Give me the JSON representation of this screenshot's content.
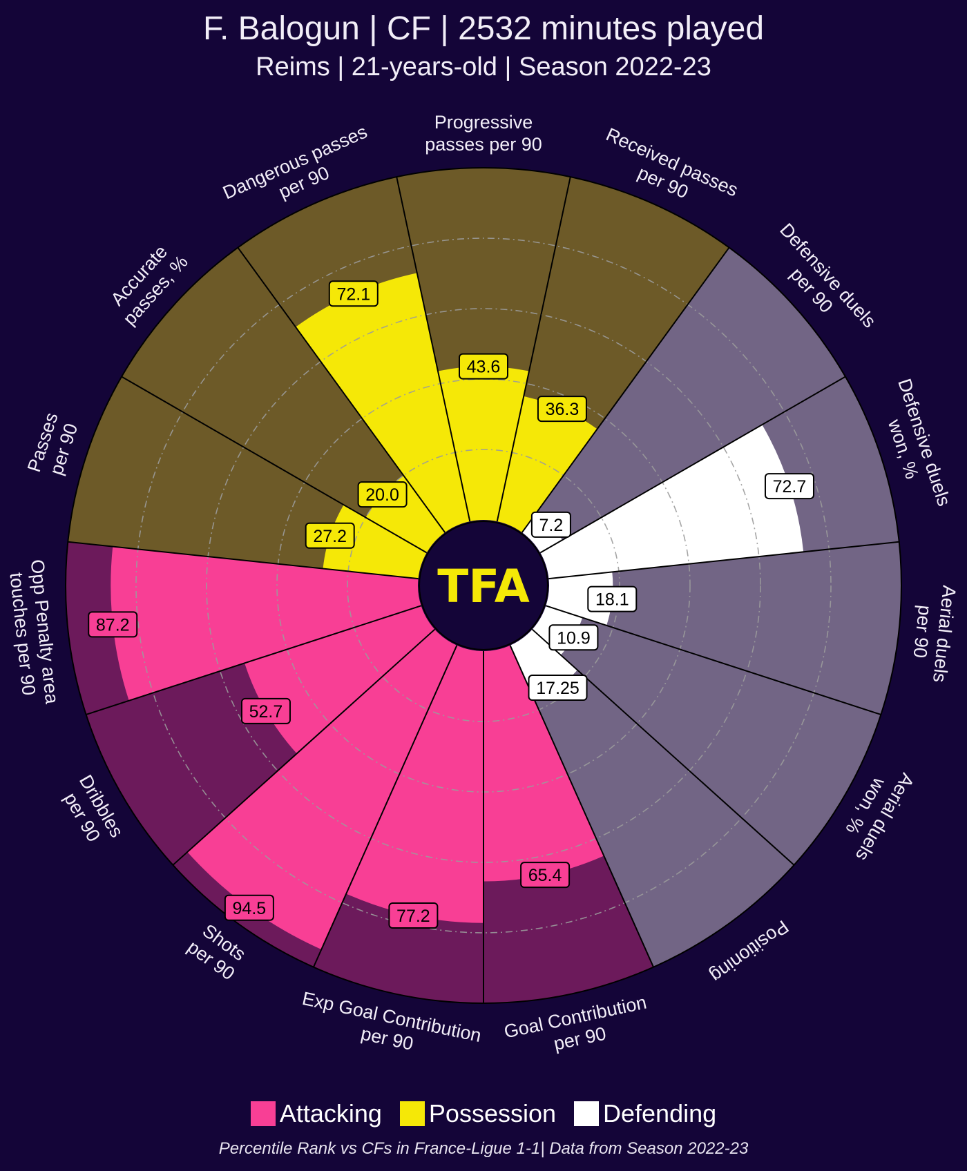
{
  "header": {
    "title": "F. Balogun | CF | 2532 minutes played",
    "subtitle": "Reims | 21-years-old | Season 2022-23"
  },
  "logo": {
    "text": "TFA"
  },
  "legend": [
    {
      "label": "Attacking",
      "color": "#f83f95"
    },
    {
      "label": "Possession",
      "color": "#f5e807"
    },
    {
      "label": "Defending",
      "color": "#ffffff"
    }
  ],
  "footnote": "Percentile Rank vs CFs in France-Ligue 1-1| Data from Season 2022-23",
  "colors": {
    "background": "#140538",
    "attacking": "#f83f95",
    "attacking_bg": "#6c1a5b",
    "possession": "#f5e807",
    "possession_bg": "#6d5a28",
    "defending": "#ffffff",
    "defending_bg": "#726585",
    "label_text": "#f2eef8",
    "grid": "#9b9b9b"
  },
  "chart_data": {
    "type": "pizza",
    "title": "F. Balogun | CF | 2532 minutes played",
    "subtitle": "Reims | 21-years-old | Season 2022-23",
    "range": [
      0,
      100
    ],
    "gridlines": [
      20,
      40,
      60,
      80
    ],
    "categories": [
      {
        "label": "Goal Contribution\nper 90",
        "value": 65.4,
        "value_label": "65.4",
        "group": "Attacking"
      },
      {
        "label": "Exp Goal Contribution\nper 90",
        "value": 77.2,
        "value_label": "77.2",
        "group": "Attacking"
      },
      {
        "label": "Shots\nper 90",
        "value": 94.5,
        "value_label": "94.5",
        "group": "Attacking"
      },
      {
        "label": "Dribbles\nper 90",
        "value": 52.7,
        "value_label": "52.7",
        "group": "Attacking"
      },
      {
        "label": "Opp Penalty area\ntouches per 90",
        "value": 87.2,
        "value_label": "87.2",
        "group": "Attacking"
      },
      {
        "label": "Passes\nper 90",
        "value": 27.2,
        "value_label": "27.2",
        "group": "Possession"
      },
      {
        "label": "Accurate\npasses, %",
        "value": 20.0,
        "value_label": "20.0",
        "group": "Possession"
      },
      {
        "label": "Dangerous passes\nper 90",
        "value": 72.1,
        "value_label": "72.1",
        "group": "Possession"
      },
      {
        "label": "Progressive\npasses per 90",
        "value": 43.6,
        "value_label": "43.6",
        "group": "Possession"
      },
      {
        "label": "Received passes\nper 90",
        "value": 36.3,
        "value_label": "36.3",
        "group": "Possession"
      },
      {
        "label": "Defensive duels\nper 90",
        "value": 7.2,
        "value_label": "7.2",
        "group": "Defending"
      },
      {
        "label": "Defensive duels\nwon, %",
        "value": 72.7,
        "value_label": "72.7",
        "group": "Defending"
      },
      {
        "label": "Aerial duels\nper 90",
        "value": 18.1,
        "value_label": "18.1",
        "group": "Defending"
      },
      {
        "label": "Aerial duels\nwon, %",
        "value": 10.9,
        "value_label": "10.9",
        "group": "Defending"
      },
      {
        "label": "Positioning",
        "value": 17.25,
        "value_label": "17.25",
        "group": "Defending"
      }
    ]
  }
}
